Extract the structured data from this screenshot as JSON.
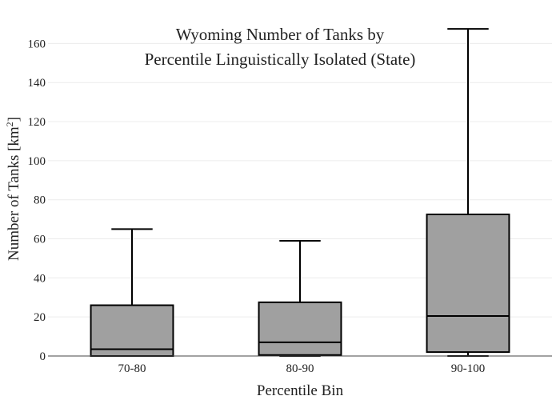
{
  "chart_data": {
    "type": "box",
    "title_lines": [
      "Wyoming Number of Tanks by",
      "Percentile Linguistically Isolated (State)"
    ],
    "xlabel": "Percentile Bin",
    "ylabel_main": "Number of Tanks  [km",
    "ylabel_sup": "2",
    "ylabel_end": "]",
    "ylim": [
      0,
      170
    ],
    "yticks": [
      0,
      20,
      40,
      60,
      80,
      100,
      120,
      140,
      160
    ],
    "grid": true,
    "box_color": "#a0a0a0",
    "line_color": "#000000",
    "categories": [
      "70-80",
      "80-90",
      "90-100"
    ],
    "boxes": [
      {
        "category": "70-80",
        "min": 0,
        "q1": 0,
        "median": 3.5,
        "q3": 26,
        "max": 65
      },
      {
        "category": "80-90",
        "min": 0,
        "q1": 0.5,
        "median": 7,
        "q3": 27.5,
        "max": 59
      },
      {
        "category": "90-100",
        "min": 0,
        "q1": 2,
        "median": 20.5,
        "q3": 72.5,
        "max": 167.5
      }
    ]
  }
}
